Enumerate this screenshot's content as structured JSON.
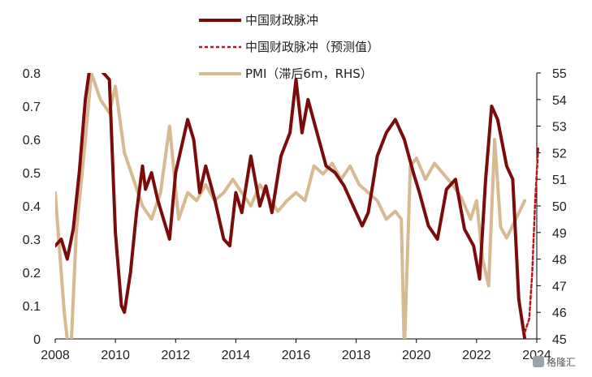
{
  "chart_data": {
    "type": "line",
    "x_ticks": [
      "2008",
      "2010",
      "2012",
      "2014",
      "2016",
      "2018",
      "2020",
      "2022",
      "2024"
    ],
    "xlim": [
      2008,
      2024
    ],
    "ylim_left": [
      0,
      0.8
    ],
    "y_ticks_left": [
      "0",
      "0.1",
      "0.2",
      "0.3",
      "0.4",
      "0.5",
      "0.6",
      "0.7",
      "0.8"
    ],
    "ylim_right": [
      45,
      55
    ],
    "y_ticks_right": [
      "45",
      "46",
      "47",
      "48",
      "49",
      "50",
      "51",
      "52",
      "53",
      "54",
      "55"
    ],
    "grid": false,
    "legend_position": "top-center",
    "series": [
      {
        "name": "中国财政脉冲",
        "axis": "left",
        "color": "#7b0c0c",
        "style": "solid",
        "x": [
          2008.0,
          2008.2,
          2008.4,
          2008.6,
          2008.8,
          2009.0,
          2009.2,
          2009.4,
          2009.6,
          2009.8,
          2010.0,
          2010.2,
          2010.3,
          2010.5,
          2010.7,
          2010.9,
          2011.0,
          2011.2,
          2011.4,
          2011.6,
          2011.8,
          2012.0,
          2012.2,
          2012.4,
          2012.6,
          2012.8,
          2013.0,
          2013.3,
          2013.6,
          2013.8,
          2014.0,
          2014.2,
          2014.5,
          2014.8,
          2015.0,
          2015.2,
          2015.5,
          2015.8,
          2016.0,
          2016.2,
          2016.4,
          2016.7,
          2017.0,
          2017.3,
          2017.6,
          2017.9,
          2018.2,
          2018.4,
          2018.7,
          2019.0,
          2019.3,
          2019.6,
          2019.9,
          2020.1,
          2020.4,
          2020.7,
          2021.0,
          2021.3,
          2021.6,
          2021.9,
          2022.1,
          2022.3,
          2022.5,
          2022.7,
          2023.0,
          2023.2,
          2023.4,
          2023.6
        ],
        "values": [
          0.28,
          0.3,
          0.24,
          0.33,
          0.5,
          0.72,
          0.85,
          0.82,
          0.8,
          0.78,
          0.32,
          0.1,
          0.08,
          0.2,
          0.38,
          0.52,
          0.45,
          0.5,
          0.42,
          0.36,
          0.3,
          0.5,
          0.58,
          0.66,
          0.6,
          0.44,
          0.52,
          0.42,
          0.3,
          0.28,
          0.44,
          0.38,
          0.55,
          0.4,
          0.46,
          0.38,
          0.55,
          0.62,
          0.78,
          0.62,
          0.72,
          0.62,
          0.52,
          0.5,
          0.46,
          0.4,
          0.34,
          0.38,
          0.55,
          0.62,
          0.66,
          0.6,
          0.5,
          0.44,
          0.34,
          0.3,
          0.45,
          0.48,
          0.33,
          0.28,
          0.18,
          0.48,
          0.7,
          0.66,
          0.52,
          0.48,
          0.12,
          0.0
        ]
      },
      {
        "name": "中国财政脉冲（预测值）",
        "axis": "left",
        "color": "#c0121a",
        "style": "dashed",
        "x": [
          2023.6,
          2023.75,
          2023.85,
          2023.95,
          2024.05
        ],
        "values": [
          0.02,
          0.06,
          0.2,
          0.42,
          0.58
        ]
      },
      {
        "name": "PMI（滞后6m，RHS）",
        "axis": "right",
        "color": "#d7b992",
        "style": "solid",
        "x": [
          2008.0,
          2008.3,
          2008.5,
          2008.7,
          2009.0,
          2009.2,
          2009.5,
          2009.8,
          2010.0,
          2010.3,
          2010.6,
          2010.9,
          2011.2,
          2011.5,
          2011.8,
          2012.1,
          2012.4,
          2012.7,
          2013.0,
          2013.3,
          2013.6,
          2013.9,
          2014.2,
          2014.5,
          2014.8,
          2015.1,
          2015.4,
          2015.7,
          2016.0,
          2016.3,
          2016.6,
          2016.9,
          2017.2,
          2017.5,
          2017.8,
          2018.1,
          2018.4,
          2018.7,
          2019.0,
          2019.3,
          2019.5,
          2019.6,
          2019.8,
          2020.0,
          2020.3,
          2020.6,
          2020.9,
          2021.2,
          2021.5,
          2021.8,
          2022.0,
          2022.2,
          2022.4,
          2022.6,
          2022.8,
          2023.0,
          2023.3,
          2023.6
        ],
        "values": [
          50.5,
          46.0,
          44.0,
          49.0,
          52.5,
          55.0,
          54.0,
          53.5,
          54.5,
          52.0,
          51.0,
          50.0,
          49.5,
          50.5,
          53.0,
          49.5,
          50.5,
          50.2,
          50.8,
          50.2,
          50.5,
          51.0,
          50.5,
          50.0,
          50.8,
          50.3,
          49.8,
          50.2,
          50.5,
          50.2,
          51.5,
          51.2,
          51.6,
          51.0,
          51.5,
          50.8,
          50.5,
          50.2,
          49.5,
          49.8,
          49.5,
          44.5,
          51.5,
          51.8,
          51.0,
          51.6,
          51.2,
          50.8,
          50.3,
          49.5,
          50.2,
          48.0,
          47.0,
          52.5,
          49.2,
          48.8,
          49.5,
          50.2
        ]
      }
    ]
  },
  "watermark": "格隆汇"
}
